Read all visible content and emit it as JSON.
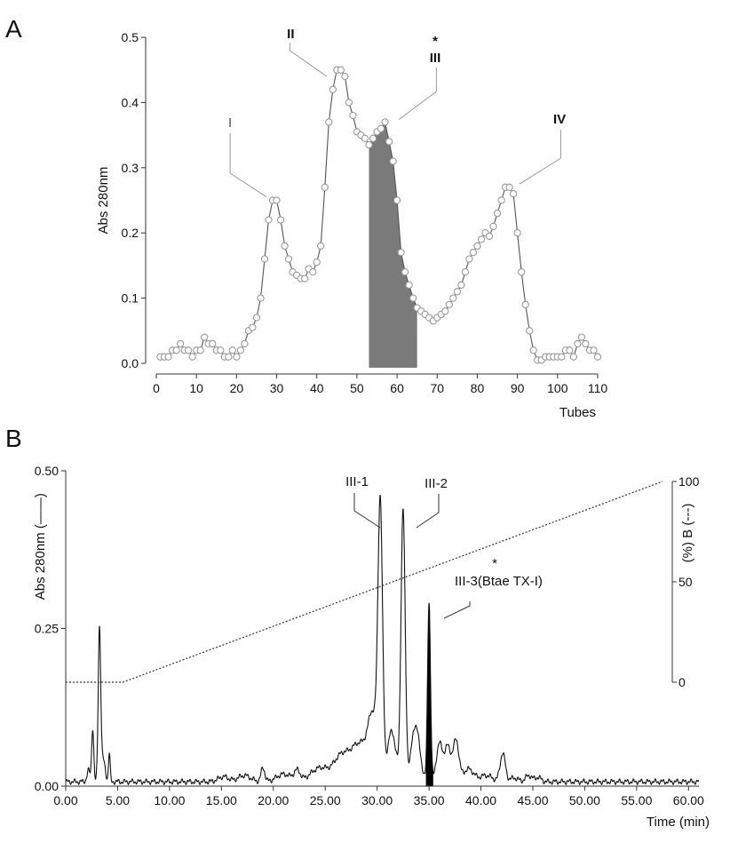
{
  "panels": {
    "a": "A",
    "b": "B"
  },
  "chart_data": [
    {
      "panel": "A",
      "type": "scatter",
      "xlabel": "Tubes",
      "ylabel": "Abs 280nm",
      "xlim": [
        0,
        110
      ],
      "ylim": [
        0,
        0.5
      ],
      "x_ticks": [
        "0",
        "10",
        "20",
        "30",
        "40",
        "50",
        "60",
        "70",
        "80",
        "90",
        "100",
        "110"
      ],
      "y_ticks": [
        "0.0",
        "0.1",
        "0.2",
        "0.3",
        "0.4",
        "0.5"
      ],
      "x": [
        1,
        2,
        3,
        4,
        5,
        6,
        7,
        8,
        9,
        10,
        11,
        12,
        13,
        14,
        15,
        16,
        17,
        18,
        19,
        20,
        21,
        22,
        23,
        24,
        25,
        26,
        27,
        28,
        29,
        30,
        31,
        32,
        33,
        34,
        35,
        36,
        37,
        38,
        39,
        40,
        41,
        42,
        43,
        44,
        45,
        46,
        47,
        48,
        49,
        50,
        51,
        52,
        53,
        54,
        55,
        56,
        57,
        58,
        59,
        60,
        61,
        62,
        63,
        64,
        65,
        66,
        67,
        68,
        69,
        70,
        71,
        72,
        73,
        74,
        75,
        76,
        77,
        78,
        79,
        80,
        81,
        82,
        83,
        84,
        85,
        86,
        87,
        88,
        89,
        90,
        91,
        92,
        93,
        94,
        95,
        96,
        97,
        98,
        99,
        100,
        101,
        102,
        103,
        104,
        105,
        106,
        107,
        108,
        109,
        110
      ],
      "y": [
        0.01,
        0.01,
        0.01,
        0.02,
        0.02,
        0.03,
        0.02,
        0.02,
        0.01,
        0.02,
        0.02,
        0.04,
        0.03,
        0.03,
        0.02,
        0.02,
        0.01,
        0.01,
        0.02,
        0.01,
        0.02,
        0.03,
        0.05,
        0.055,
        0.07,
        0.1,
        0.16,
        0.22,
        0.25,
        0.25,
        0.22,
        0.18,
        0.16,
        0.14,
        0.135,
        0.13,
        0.13,
        0.145,
        0.14,
        0.155,
        0.18,
        0.27,
        0.37,
        0.42,
        0.45,
        0.45,
        0.44,
        0.4,
        0.38,
        0.355,
        0.35,
        0.345,
        0.335,
        0.345,
        0.355,
        0.36,
        0.37,
        0.34,
        0.31,
        0.25,
        0.17,
        0.14,
        0.12,
        0.1,
        0.085,
        0.08,
        0.075,
        0.07,
        0.065,
        0.07,
        0.075,
        0.08,
        0.09,
        0.1,
        0.11,
        0.12,
        0.14,
        0.16,
        0.17,
        0.18,
        0.19,
        0.2,
        0.195,
        0.21,
        0.23,
        0.25,
        0.27,
        0.27,
        0.26,
        0.2,
        0.14,
        0.09,
        0.05,
        0.02,
        0.005,
        0.005,
        0.01,
        0.01,
        0.01,
        0.01,
        0.01,
        0.02,
        0.02,
        0.01,
        0.03,
        0.04,
        0.03,
        0.02,
        0.02,
        0.01
      ],
      "shaded_region": {
        "x_from": 53,
        "x_to": 65,
        "color": "#7a7a7a"
      },
      "peaks": [
        {
          "label": "I",
          "x": 29.5,
          "y": 0.25,
          "marker": ""
        },
        {
          "label": "II",
          "x": 45,
          "y": 0.45,
          "marker": ""
        },
        {
          "label": "III",
          "x": 58,
          "y": 0.37,
          "marker": "*"
        },
        {
          "label": "IV",
          "x": 88,
          "y": 0.27,
          "marker": ""
        }
      ],
      "colors": {
        "line": "#555555",
        "marker": "#999999",
        "shade": "#7a7a7a"
      }
    },
    {
      "panel": "B",
      "type": "line",
      "xlabel": "Time (min)",
      "ylabel": "Abs 280nm (——)",
      "y2label": "(%) B (---)",
      "xlim": [
        0,
        61
      ],
      "ylim": [
        0,
        0.5
      ],
      "y2lim": [
        0,
        100
      ],
      "x_ticks": [
        "0.00",
        "5.00",
        "10.00",
        "15.00",
        "20.00",
        "25.00",
        "30.00",
        "35.00",
        "40.00",
        "45.00",
        "50.00",
        "55.00",
        "60.00"
      ],
      "y_ticks": [
        "0.00",
        "0.25",
        "0.50"
      ],
      "y2_ticks": [
        "0",
        "50",
        "100"
      ],
      "gradient": {
        "x": [
          0,
          5.5,
          57.5
        ],
        "y": [
          0,
          0,
          100
        ]
      },
      "baseline": 0.007,
      "features": [
        {
          "center": 2.6,
          "height": 0.085,
          "width": 0.1
        },
        {
          "center": 2.2,
          "height": 0.018,
          "width": 0.15
        },
        {
          "center": 3.25,
          "height": 0.24,
          "width": 0.12
        },
        {
          "center": 3.6,
          "height": 0.035,
          "width": 0.2
        },
        {
          "center": 4.2,
          "height": 0.045,
          "width": 0.08
        },
        {
          "center": 15.2,
          "height": 0.008,
          "width": 0.5
        },
        {
          "center": 17.2,
          "height": 0.01,
          "width": 0.6
        },
        {
          "center": 19.0,
          "height": 0.022,
          "width": 0.18
        },
        {
          "center": 21.0,
          "height": 0.012,
          "width": 0.7
        },
        {
          "center": 22.3,
          "height": 0.016,
          "width": 0.3
        },
        {
          "center": 24.5,
          "height": 0.022,
          "width": 0.9
        },
        {
          "center": 26.5,
          "height": 0.035,
          "width": 0.7
        },
        {
          "center": 28.3,
          "height": 0.06,
          "width": 0.9
        },
        {
          "center": 29.6,
          "height": 0.09,
          "width": 0.45
        },
        {
          "center": 30.3,
          "height": 0.42,
          "width": 0.22
        },
        {
          "center": 31.4,
          "height": 0.08,
          "width": 0.4
        },
        {
          "center": 32.5,
          "height": 0.43,
          "width": 0.2
        },
        {
          "center": 33.7,
          "height": 0.09,
          "width": 0.4
        },
        {
          "center": 35.0,
          "height": 0.285,
          "width": 0.14
        },
        {
          "center": 36.0,
          "height": 0.06,
          "width": 0.3
        },
        {
          "center": 36.8,
          "height": 0.055,
          "width": 0.3
        },
        {
          "center": 37.6,
          "height": 0.065,
          "width": 0.28
        },
        {
          "center": 38.8,
          "height": 0.02,
          "width": 0.5
        },
        {
          "center": 40.5,
          "height": 0.01,
          "width": 0.6
        },
        {
          "center": 42.1,
          "height": 0.045,
          "width": 0.25
        },
        {
          "center": 43.2,
          "height": 0.006,
          "width": 0.4
        },
        {
          "center": 44.6,
          "height": 0.01,
          "width": 0.3
        },
        {
          "center": 45.5,
          "height": 0.007,
          "width": 0.3
        }
      ],
      "shaded_region": {
        "x_from": 34.7,
        "x_to": 35.4,
        "color": "#000000"
      },
      "peaks": [
        {
          "label": "III-1",
          "x": 30.3,
          "y": 0.43,
          "marker": ""
        },
        {
          "label": "III-2",
          "x": 32.5,
          "y": 0.44,
          "marker": ""
        },
        {
          "label": "III-3(Btae TX-I)",
          "x": 35.0,
          "y": 0.29,
          "marker": "*"
        }
      ],
      "colors": {
        "line": "#111111",
        "gradient": "#333333",
        "shade": "#000000"
      }
    }
  ]
}
